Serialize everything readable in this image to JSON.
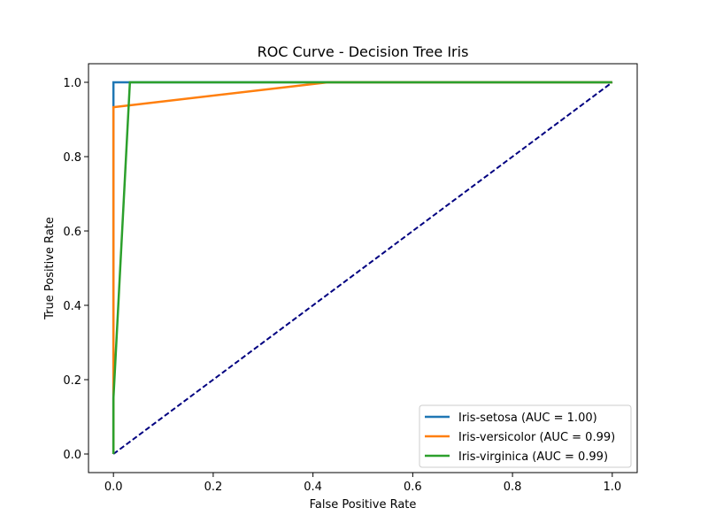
{
  "chart_data": {
    "type": "line",
    "title": "ROC Curve - Decision Tree Iris",
    "xlabel": "False Positive Rate",
    "ylabel": "True Positive Rate",
    "xlim": [
      -0.05,
      1.05
    ],
    "ylim": [
      -0.05,
      1.05
    ],
    "xticks": [
      0.0,
      0.2,
      0.4,
      0.6,
      0.8,
      1.0
    ],
    "yticks": [
      0.0,
      0.2,
      0.4,
      0.6,
      0.8,
      1.0
    ],
    "xtick_labels": [
      "0.0",
      "0.2",
      "0.4",
      "0.6",
      "0.8",
      "1.0"
    ],
    "ytick_labels": [
      "0.0",
      "0.2",
      "0.4",
      "0.6",
      "0.8",
      "1.0"
    ],
    "grid": false,
    "legend_position": "lower-right",
    "series": [
      {
        "name": "Iris-setosa (AUC = 1.00)",
        "color": "#1f77b4",
        "x": [
          0.0,
          0.0,
          1.0
        ],
        "y": [
          0.0,
          1.0,
          1.0
        ]
      },
      {
        "name": "Iris-versicolor (AUC = 0.99)",
        "color": "#ff7f0e",
        "x": [
          0.0,
          0.0,
          0.43,
          1.0
        ],
        "y": [
          0.0,
          0.933,
          1.0,
          1.0
        ]
      },
      {
        "name": "Iris-virginica (AUC = 0.99)",
        "color": "#2ca02c",
        "x": [
          0.0,
          0.0,
          0.033,
          1.0
        ],
        "y": [
          0.0,
          0.15,
          1.0,
          1.0
        ]
      }
    ],
    "reference_line": {
      "x": [
        0.0,
        1.0
      ],
      "y": [
        0.0,
        1.0
      ],
      "color": "#000080",
      "style": "dashed"
    }
  }
}
